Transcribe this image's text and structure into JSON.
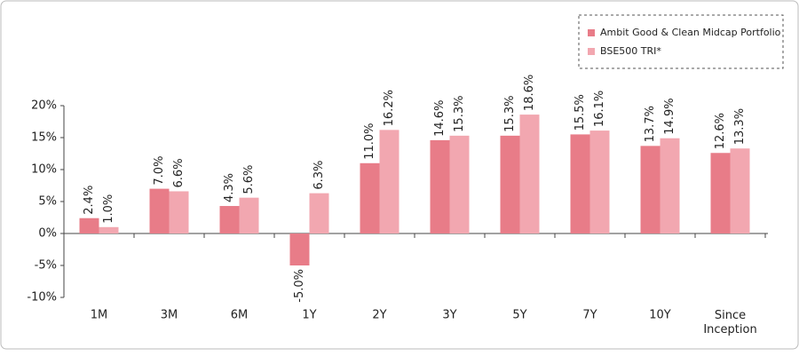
{
  "chart_data": {
    "type": "bar",
    "categories": [
      "1M",
      "3M",
      "6M",
      "1Y",
      "2Y",
      "3Y",
      "5Y",
      "7Y",
      "10Y",
      "Since Inception"
    ],
    "series": [
      {
        "name": "Ambit Good & Clean Midcap Portfolio",
        "color": "#e87c88",
        "values": [
          2.4,
          7.0,
          4.3,
          -5.0,
          11.0,
          14.6,
          15.3,
          15.5,
          13.7,
          12.6
        ],
        "value_labels": [
          "2.4%",
          "7.0%",
          "4.3%",
          "-5.0%",
          "11.0%",
          "14.6%",
          "15.3%",
          "15.5%",
          "13.7%",
          "12.6%"
        ]
      },
      {
        "name": "BSE500 TRI*",
        "color": "#f2a7b0",
        "values": [
          1.0,
          6.6,
          5.6,
          6.3,
          16.2,
          15.3,
          18.6,
          16.1,
          14.9,
          13.3
        ],
        "value_labels": [
          "1.0%",
          "6.6%",
          "5.6%",
          "6.3%",
          "16.2%",
          "15.3%",
          "18.6%",
          "16.1%",
          "14.9%",
          "13.3%"
        ]
      }
    ],
    "ylim": [
      -10,
      20
    ],
    "yticks": [
      {
        "value": -10,
        "label": "-10%"
      },
      {
        "value": -5,
        "label": "-5%"
      },
      {
        "value": 0,
        "label": "0%"
      },
      {
        "value": 5,
        "label": "5%"
      },
      {
        "value": 10,
        "label": "10%"
      },
      {
        "value": 15,
        "label": "15%"
      },
      {
        "value": 20,
        "label": "20%"
      }
    ],
    "legend": "top-right"
  }
}
